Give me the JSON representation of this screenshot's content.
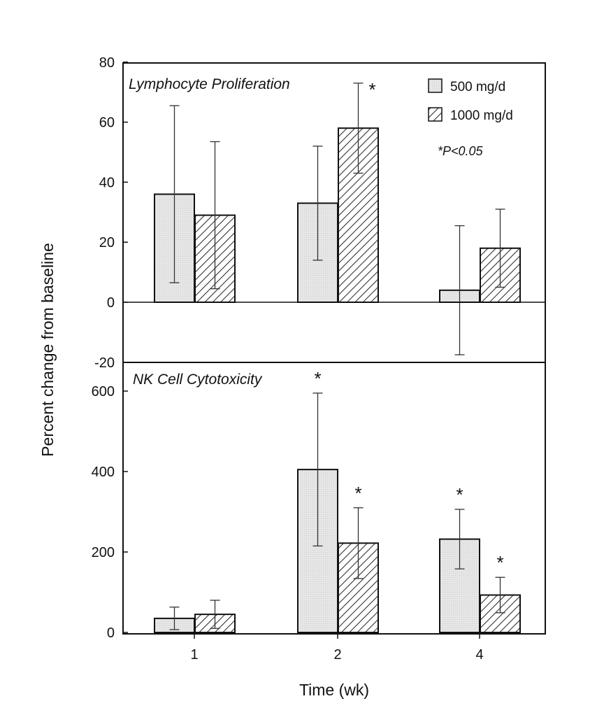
{
  "chart_data": {
    "type": "bar",
    "xlabel": "Time (wk)",
    "ylabel": "Percent change from baseline",
    "categories": [
      "1",
      "2",
      "4"
    ],
    "legend": {
      "placement": "top-right",
      "entries": [
        "500 mg/d",
        "1000 mg/d"
      ]
    },
    "note": "*P<0.05",
    "significance_symbol": "*",
    "colors": {
      "bar_500": "#e6e6e6",
      "bar_1000_hatch": "#333333",
      "axis": "#111111"
    },
    "panels": [
      {
        "title": "Lymphocyte Proliferation",
        "ylim": [
          -20,
          80
        ],
        "yticks": [
          -20,
          0,
          20,
          40,
          60,
          80
        ],
        "grid": false,
        "series": [
          {
            "name": "500 mg/d",
            "values": [
              36,
              33,
              4
            ],
            "error": [
              29.5,
              19,
              21.5
            ],
            "significant": [
              false,
              false,
              false
            ]
          },
          {
            "name": "1000 mg/d",
            "values": [
              29,
              58,
              18
            ],
            "error": [
              24.5,
              15,
              13
            ],
            "significant": [
              false,
              true,
              false
            ]
          }
        ]
      },
      {
        "title": "NK Cell Cytotoxicity",
        "ylim": [
          0,
          660
        ],
        "yticks": [
          0,
          200,
          400,
          600
        ],
        "grid": false,
        "series": [
          {
            "name": "500 mg/d",
            "values": [
              35,
              405,
              232
            ],
            "error": [
              28,
              190,
              74
            ],
            "significant": [
              false,
              true,
              true
            ]
          },
          {
            "name": "1000 mg/d",
            "values": [
              45,
              222,
              93
            ],
            "error": [
              35,
              88,
              44
            ],
            "significant": [
              false,
              true,
              true
            ]
          }
        ]
      }
    ]
  }
}
